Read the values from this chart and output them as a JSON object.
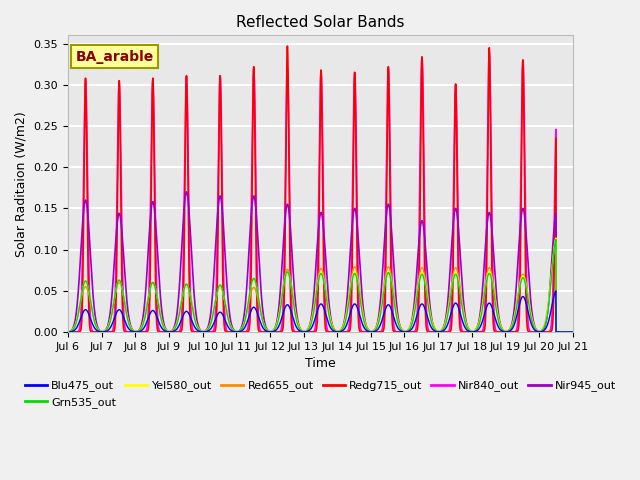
{
  "title": "Reflected Solar Bands",
  "xlabel": "Time",
  "ylabel": "Solar Raditaion (W/m2)",
  "annotation": "BA_arable",
  "annotation_color": "#8B0000",
  "annotation_bg": "#FFFF99",
  "annotation_edge": "#999900",
  "ylim": [
    0,
    0.36
  ],
  "yticks": [
    0.0,
    0.05,
    0.1,
    0.15,
    0.2,
    0.25,
    0.3,
    0.35
  ],
  "xtick_labels": [
    "Jul 6",
    "Jul 7",
    "Jul 8",
    "Jul 9",
    "Jul 10",
    "Jul 11",
    "Jul 12",
    "Jul 13",
    "Jul 14",
    "Jul 15",
    "Jul 16",
    "Jul 17",
    "Jul 18",
    "Jul 19",
    "Jul 20",
    "Jul 21"
  ],
  "n_days": 15,
  "series": {
    "Blu475_out": {
      "color": "#0000FF",
      "lw": 1.0
    },
    "Grn535_out": {
      "color": "#00DD00",
      "lw": 1.0
    },
    "Yel580_out": {
      "color": "#FFFF00",
      "lw": 1.0
    },
    "Red655_out": {
      "color": "#FF8800",
      "lw": 1.0
    },
    "Redg715_out": {
      "color": "#FF0000",
      "lw": 1.2
    },
    "Nir840_out": {
      "color": "#FF00FF",
      "lw": 1.2
    },
    "Nir945_out": {
      "color": "#9900CC",
      "lw": 1.2
    }
  },
  "bg_color": "#E8E8E8",
  "grid_color": "#FFFFFF",
  "grid_lw": 1.5,
  "legend_order": [
    "Blu475_out",
    "Grn535_out",
    "Yel580_out",
    "Red655_out",
    "Redg715_out",
    "Nir840_out",
    "Nir945_out"
  ],
  "plot_order": [
    "Nir840_out",
    "Redg715_out",
    "Nir945_out",
    "Red655_out",
    "Yel580_out",
    "Grn535_out",
    "Blu475_out"
  ]
}
